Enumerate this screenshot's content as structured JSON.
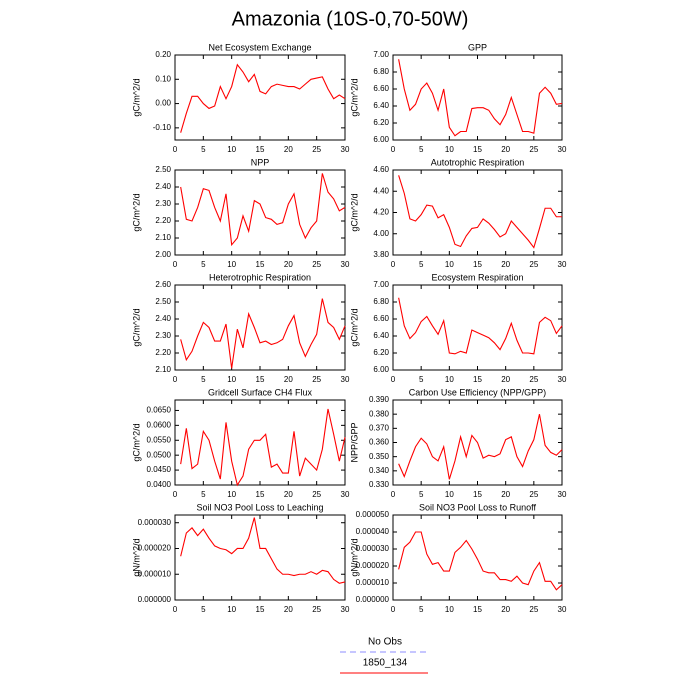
{
  "title": "Amazonia (10S-0,70-50W)",
  "legend": [
    {
      "name": "No Obs",
      "color": "#8c8cff",
      "dash": true
    },
    {
      "name": "1850_134",
      "color": "#ff0000",
      "dash": false
    }
  ],
  "chart_data": [
    {
      "type": "line",
      "title": "Net Ecosystem Exchange",
      "ylabel": "gC/m^2/d",
      "color": "#ff0000",
      "x": [
        1,
        2,
        3,
        4,
        5,
        6,
        7,
        8,
        9,
        10,
        11,
        12,
        13,
        14,
        15,
        16,
        17,
        18,
        19,
        20,
        21,
        22,
        23,
        24,
        25,
        26,
        27,
        28,
        29,
        30
      ],
      "values": [
        -0.12,
        -0.04,
        0.03,
        0.03,
        0.0,
        -0.02,
        -0.01,
        0.07,
        0.02,
        0.07,
        0.16,
        0.13,
        0.09,
        0.12,
        0.05,
        0.04,
        0.07,
        0.08,
        0.075,
        0.07,
        0.07,
        0.06,
        0.08,
        0.1,
        0.105,
        0.11,
        0.06,
        0.02,
        0.035,
        0.02
      ],
      "xlim": [
        0,
        30
      ],
      "xticks": [
        0,
        5,
        10,
        15,
        20,
        25,
        30
      ],
      "ylim": [
        -0.15,
        0.2
      ],
      "yticks": [
        {
          "value": -0.1,
          "label": "-0.10"
        },
        {
          "value": 0,
          "label": "0.00"
        },
        {
          "value": 0.1,
          "label": "0.10"
        },
        {
          "value": 0.2,
          "label": "0.20"
        }
      ]
    },
    {
      "type": "line",
      "title": "GPP",
      "ylabel": "gC/m^2/d",
      "color": "#ff0000",
      "x": [
        1,
        2,
        3,
        4,
        5,
        6,
        7,
        8,
        9,
        10,
        11,
        12,
        13,
        14,
        15,
        16,
        17,
        18,
        19,
        20,
        21,
        22,
        23,
        24,
        25,
        26,
        27,
        28,
        29,
        30
      ],
      "values": [
        6.95,
        6.6,
        6.35,
        6.42,
        6.6,
        6.67,
        6.55,
        6.35,
        6.6,
        6.15,
        6.05,
        6.1,
        6.1,
        6.37,
        6.38,
        6.38,
        6.35,
        6.25,
        6.18,
        6.3,
        6.5,
        6.3,
        6.1,
        6.1,
        6.08,
        6.55,
        6.62,
        6.55,
        6.42,
        6.43
      ],
      "xlim": [
        0,
        30
      ],
      "xticks": [
        0,
        5,
        10,
        15,
        20,
        25,
        30
      ],
      "ylim": [
        6.0,
        7.0
      ],
      "yticks": [
        {
          "value": 6.0,
          "label": "6.00"
        },
        {
          "value": 6.2,
          "label": "6.20"
        },
        {
          "value": 6.4,
          "label": "6.40"
        },
        {
          "value": 6.6,
          "label": "6.60"
        },
        {
          "value": 6.8,
          "label": "6.80"
        },
        {
          "value": 7.0,
          "label": "7.00"
        }
      ]
    },
    {
      "type": "line",
      "title": "NPP",
      "ylabel": "gC/m^2/d",
      "color": "#ff0000",
      "x": [
        1,
        2,
        3,
        4,
        5,
        6,
        7,
        8,
        9,
        10,
        11,
        12,
        13,
        14,
        15,
        16,
        17,
        18,
        19,
        20,
        21,
        22,
        23,
        24,
        25,
        26,
        27,
        28,
        29,
        30
      ],
      "values": [
        2.4,
        2.21,
        2.2,
        2.28,
        2.39,
        2.38,
        2.28,
        2.2,
        2.36,
        2.06,
        2.1,
        2.23,
        2.14,
        2.32,
        2.3,
        2.22,
        2.21,
        2.18,
        2.19,
        2.3,
        2.36,
        2.18,
        2.1,
        2.16,
        2.2,
        2.48,
        2.37,
        2.33,
        2.26,
        2.28
      ],
      "xlim": [
        0,
        30
      ],
      "xticks": [
        0,
        5,
        10,
        15,
        20,
        25,
        30
      ],
      "ylim": [
        2.0,
        2.5
      ],
      "yticks": [
        {
          "value": 2.0,
          "label": "2.00"
        },
        {
          "value": 2.1,
          "label": "2.10"
        },
        {
          "value": 2.2,
          "label": "2.20"
        },
        {
          "value": 2.3,
          "label": "2.30"
        },
        {
          "value": 2.4,
          "label": "2.40"
        },
        {
          "value": 2.5,
          "label": "2.50"
        }
      ]
    },
    {
      "type": "line",
      "title": "Autotrophic Respiration",
      "ylabel": "gC/m^2/d",
      "color": "#ff0000",
      "x": [
        1,
        2,
        3,
        4,
        5,
        6,
        7,
        8,
        9,
        10,
        11,
        12,
        13,
        14,
        15,
        16,
        17,
        18,
        19,
        20,
        21,
        22,
        23,
        24,
        25,
        26,
        27,
        28,
        29,
        30
      ],
      "values": [
        4.55,
        4.38,
        4.14,
        4.12,
        4.18,
        4.27,
        4.26,
        4.15,
        4.18,
        4.06,
        3.9,
        3.88,
        3.98,
        4.05,
        4.06,
        4.14,
        4.1,
        4.04,
        3.97,
        4.0,
        4.12,
        4.06,
        4.0,
        3.94,
        3.87,
        4.05,
        4.24,
        4.24,
        4.16,
        4.16
      ],
      "xlim": [
        0,
        30
      ],
      "xticks": [
        0,
        5,
        10,
        15,
        20,
        25,
        30
      ],
      "ylim": [
        3.8,
        4.6
      ],
      "yticks": [
        {
          "value": 3.8,
          "label": "3.80"
        },
        {
          "value": 4.0,
          "label": "4.00"
        },
        {
          "value": 4.2,
          "label": "4.20"
        },
        {
          "value": 4.4,
          "label": "4.40"
        },
        {
          "value": 4.6,
          "label": "4.60"
        }
      ]
    },
    {
      "type": "line",
      "title": "Heterotrophic Respiration",
      "ylabel": "gC/m^2/d",
      "color": "#ff0000",
      "x": [
        1,
        2,
        3,
        4,
        5,
        6,
        7,
        8,
        9,
        10,
        11,
        12,
        13,
        14,
        15,
        16,
        17,
        18,
        19,
        20,
        21,
        22,
        23,
        24,
        25,
        26,
        27,
        28,
        29,
        30
      ],
      "values": [
        2.28,
        2.16,
        2.21,
        2.3,
        2.38,
        2.35,
        2.27,
        2.27,
        2.37,
        2.11,
        2.34,
        2.23,
        2.43,
        2.35,
        2.26,
        2.27,
        2.25,
        2.26,
        2.28,
        2.36,
        2.42,
        2.26,
        2.18,
        2.25,
        2.31,
        2.52,
        2.38,
        2.35,
        2.28,
        2.36
      ],
      "xlim": [
        0,
        30
      ],
      "xticks": [
        0,
        5,
        10,
        15,
        20,
        25,
        30
      ],
      "ylim": [
        2.1,
        2.6
      ],
      "yticks": [
        {
          "value": 2.1,
          "label": "2.10"
        },
        {
          "value": 2.2,
          "label": "2.20"
        },
        {
          "value": 2.3,
          "label": "2.30"
        },
        {
          "value": 2.4,
          "label": "2.40"
        },
        {
          "value": 2.5,
          "label": "2.50"
        },
        {
          "value": 2.6,
          "label": "2.60"
        }
      ]
    },
    {
      "type": "line",
      "title": "Ecosystem Respiration",
      "ylabel": "gC/m^2/d",
      "color": "#ff0000",
      "x": [
        1,
        2,
        3,
        4,
        5,
        6,
        7,
        8,
        9,
        10,
        11,
        12,
        13,
        14,
        15,
        16,
        17,
        18,
        19,
        20,
        21,
        22,
        23,
        24,
        25,
        26,
        27,
        28,
        29,
        30
      ],
      "values": [
        6.85,
        6.52,
        6.37,
        6.44,
        6.57,
        6.63,
        6.52,
        6.42,
        6.58,
        6.2,
        6.19,
        6.22,
        6.2,
        6.47,
        6.44,
        6.41,
        6.38,
        6.32,
        6.24,
        6.37,
        6.55,
        6.35,
        6.2,
        6.2,
        6.19,
        6.56,
        6.62,
        6.58,
        6.43,
        6.52
      ],
      "xlim": [
        0,
        30
      ],
      "xticks": [
        0,
        5,
        10,
        15,
        20,
        25,
        30
      ],
      "ylim": [
        6.0,
        7.0
      ],
      "yticks": [
        {
          "value": 6.0,
          "label": "6.00"
        },
        {
          "value": 6.2,
          "label": "6.20"
        },
        {
          "value": 6.4,
          "label": "6.40"
        },
        {
          "value": 6.6,
          "label": "6.60"
        },
        {
          "value": 6.8,
          "label": "6.80"
        },
        {
          "value": 7.0,
          "label": "7.00"
        }
      ]
    },
    {
      "type": "line",
      "title": "Gridcell Surface CH4 Flux",
      "ylabel": "gC/m^2/d",
      "color": "#ff0000",
      "x": [
        1,
        2,
        3,
        4,
        5,
        6,
        7,
        8,
        9,
        10,
        11,
        12,
        13,
        14,
        15,
        16,
        17,
        18,
        19,
        20,
        21,
        22,
        23,
        24,
        25,
        26,
        27,
        28,
        29,
        30
      ],
      "values": [
        0.047,
        0.059,
        0.0455,
        0.047,
        0.058,
        0.055,
        0.048,
        0.042,
        0.061,
        0.048,
        0.04,
        0.043,
        0.052,
        0.055,
        0.055,
        0.057,
        0.046,
        0.047,
        0.044,
        0.044,
        0.058,
        0.043,
        0.049,
        0.047,
        0.045,
        0.052,
        0.0655,
        0.057,
        0.048,
        0.056
      ],
      "xlim": [
        0,
        30
      ],
      "xticks": [
        0,
        5,
        10,
        15,
        20,
        25,
        30
      ],
      "ylim": [
        0.04,
        0.0685
      ],
      "yticks": [
        {
          "value": 0.04,
          "label": "0.0400"
        },
        {
          "value": 0.045,
          "label": "0.0450"
        },
        {
          "value": 0.05,
          "label": "0.0500"
        },
        {
          "value": 0.055,
          "label": "0.0550"
        },
        {
          "value": 0.06,
          "label": "0.0600"
        },
        {
          "value": 0.065,
          "label": "0.0650"
        }
      ]
    },
    {
      "type": "line",
      "title": "Carbon Use Efficiency (NPP/GPP)",
      "ylabel": "NPP/GPP",
      "color": "#ff0000",
      "x": [
        1,
        2,
        3,
        4,
        5,
        6,
        7,
        8,
        9,
        10,
        11,
        12,
        13,
        14,
        15,
        16,
        17,
        18,
        19,
        20,
        21,
        22,
        23,
        24,
        25,
        26,
        27,
        28,
        29,
        30
      ],
      "values": [
        0.345,
        0.336,
        0.347,
        0.357,
        0.363,
        0.359,
        0.35,
        0.347,
        0.357,
        0.334,
        0.347,
        0.364,
        0.35,
        0.365,
        0.36,
        0.349,
        0.351,
        0.35,
        0.352,
        0.362,
        0.364,
        0.35,
        0.343,
        0.354,
        0.362,
        0.38,
        0.358,
        0.353,
        0.351,
        0.355
      ],
      "xlim": [
        0,
        30
      ],
      "xticks": [
        0,
        5,
        10,
        15,
        20,
        25,
        30
      ],
      "ylim": [
        0.33,
        0.39
      ],
      "yticks": [
        {
          "value": 0.33,
          "label": "0.330"
        },
        {
          "value": 0.34,
          "label": "0.340"
        },
        {
          "value": 0.35,
          "label": "0.350"
        },
        {
          "value": 0.36,
          "label": "0.360"
        },
        {
          "value": 0.37,
          "label": "0.370"
        },
        {
          "value": 0.38,
          "label": "0.380"
        },
        {
          "value": 0.39,
          "label": "0.390"
        }
      ]
    },
    {
      "type": "line",
      "title": "Soil NO3 Pool Loss to Leaching",
      "ylabel": "gN/m^2/d",
      "color": "#ff0000",
      "x": [
        1,
        2,
        3,
        4,
        5,
        6,
        7,
        8,
        9,
        10,
        11,
        12,
        13,
        14,
        15,
        16,
        17,
        18,
        19,
        20,
        21,
        22,
        23,
        24,
        25,
        26,
        27,
        28,
        29,
        30
      ],
      "values": [
        1.7e-05,
        2.6e-05,
        2.8e-05,
        2.5e-05,
        2.75e-05,
        2.4e-05,
        2.1e-05,
        2e-05,
        1.95e-05,
        1.8e-05,
        2e-05,
        2e-05,
        2.4e-05,
        3.2e-05,
        2e-05,
        2e-05,
        1.6e-05,
        1.2e-05,
        1e-05,
        1e-05,
        9.5e-06,
        1e-05,
        1e-05,
        1.1e-05,
        1e-05,
        1.15e-05,
        1.1e-05,
        8e-06,
        6.5e-06,
        7e-06
      ],
      "xlim": [
        0,
        30
      ],
      "xticks": [
        0,
        5,
        10,
        15,
        20,
        25,
        30
      ],
      "ylim": [
        0,
        3.3e-05
      ],
      "yticks": [
        {
          "value": 0,
          "label": "0.000000"
        },
        {
          "value": 1e-05,
          "label": "0.000010"
        },
        {
          "value": 2e-05,
          "label": "0.000020"
        },
        {
          "value": 3e-05,
          "label": "0.000030"
        }
      ]
    },
    {
      "type": "line",
      "title": "Soil NO3 Pool Loss to Runoff",
      "ylabel": "gN/m^2/d",
      "color": "#ff0000",
      "x": [
        1,
        2,
        3,
        4,
        5,
        6,
        7,
        8,
        9,
        10,
        11,
        12,
        13,
        14,
        15,
        16,
        17,
        18,
        19,
        20,
        21,
        22,
        23,
        24,
        25,
        26,
        27,
        28,
        29,
        30
      ],
      "values": [
        1.8e-05,
        3.1e-05,
        3.4e-05,
        4e-05,
        4e-05,
        2.7e-05,
        2.1e-05,
        2.2e-05,
        1.7e-05,
        1.7e-05,
        2.8e-05,
        3.1e-05,
        3.5e-05,
        3e-05,
        2.4e-05,
        1.7e-05,
        1.6e-05,
        1.6e-05,
        1.2e-05,
        1.2e-05,
        1.1e-05,
        1.4e-05,
        1e-05,
        9e-06,
        1.7e-05,
        2.2e-05,
        1.1e-05,
        1.1e-05,
        6e-06,
        9e-06
      ],
      "xlim": [
        0,
        30
      ],
      "xticks": [
        0,
        5,
        10,
        15,
        20,
        25,
        30
      ],
      "ylim": [
        0,
        5e-05
      ],
      "yticks": [
        {
          "value": 0,
          "label": "0.000000"
        },
        {
          "value": 1e-05,
          "label": "0.000010"
        },
        {
          "value": 2e-05,
          "label": "0.000020"
        },
        {
          "value": 3e-05,
          "label": "0.000030"
        },
        {
          "value": 4e-05,
          "label": "0.000040"
        },
        {
          "value": 5e-05,
          "label": "0.000050"
        }
      ]
    }
  ]
}
